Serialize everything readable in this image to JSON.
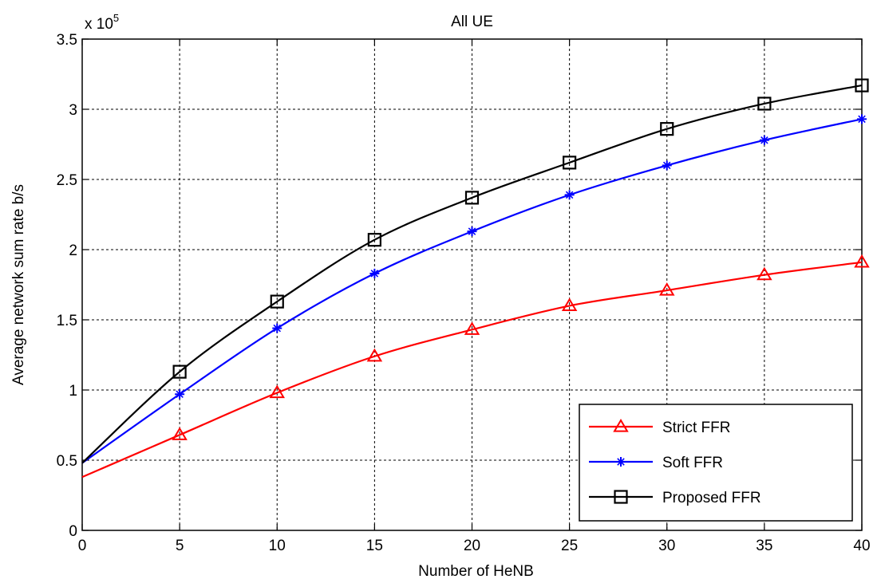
{
  "chart_data": {
    "type": "line",
    "title": "All UE",
    "xlabel": "Number of HeNB",
    "ylabel": "Average network sum rate b/s",
    "y_multiplier_label": "x 10",
    "y_multiplier_exponent": "5",
    "xlim": [
      0,
      40
    ],
    "ylim": [
      0,
      3.5
    ],
    "xticks": [
      0,
      5,
      10,
      15,
      20,
      25,
      30,
      35,
      40
    ],
    "yticks": [
      0,
      0.5,
      1,
      1.5,
      2,
      2.5,
      3,
      3.5
    ],
    "xtick_labels": [
      "0",
      "5",
      "10",
      "15",
      "20",
      "25",
      "30",
      "35",
      "40"
    ],
    "ytick_labels": [
      "0",
      "0.5",
      "1",
      "1.5",
      "2",
      "2.5",
      "3",
      "3.5"
    ],
    "grid": true,
    "legend_position": "bottom-right",
    "series": [
      {
        "name": "Strict FFR",
        "color": "#ff0000",
        "marker": "triangle",
        "x": [
          0,
          5,
          10,
          15,
          20,
          25,
          30,
          35,
          40
        ],
        "y": [
          0.38,
          0.68,
          0.98,
          1.24,
          1.43,
          1.6,
          1.71,
          1.82,
          1.91
        ]
      },
      {
        "name": "Soft FFR",
        "color": "#0000ff",
        "marker": "star",
        "x": [
          0,
          5,
          10,
          15,
          20,
          25,
          30,
          35,
          40
        ],
        "y": [
          0.48,
          0.97,
          1.44,
          1.83,
          2.13,
          2.39,
          2.6,
          2.78,
          2.93
        ]
      },
      {
        "name": "Proposed FFR",
        "color": "#000000",
        "marker": "square",
        "x": [
          0,
          5,
          10,
          15,
          20,
          25,
          30,
          35,
          40
        ],
        "y": [
          0.48,
          1.13,
          1.63,
          2.07,
          2.37,
          2.62,
          2.86,
          3.04,
          3.17
        ]
      }
    ]
  }
}
